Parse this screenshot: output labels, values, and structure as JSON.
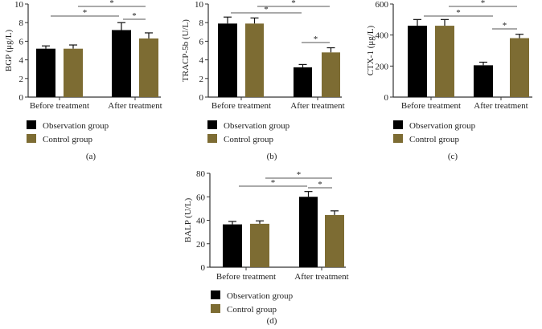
{
  "colors": {
    "observation": "#000000",
    "control": "#7d6c33",
    "axis": "#333333",
    "sig_line": "#555555"
  },
  "legend": [
    "Observation group",
    "Control group"
  ],
  "chart_data": [
    {
      "type": "bar",
      "panel_label": "(a)",
      "ylabel": "BGP (μg/L)",
      "ylim": [
        0,
        10
      ],
      "yticks": [
        "0",
        "2",
        "4",
        "6",
        "8",
        "10"
      ],
      "categories": [
        "Before treatment",
        "After treatment"
      ],
      "series": [
        {
          "name": "Observation group",
          "values": [
            5.2,
            7.2
          ],
          "errors": [
            0.3,
            0.8
          ]
        },
        {
          "name": "Control group",
          "values": [
            5.2,
            6.3
          ],
          "errors": [
            0.4,
            0.6
          ]
        }
      ],
      "significance": [
        "*",
        "*",
        "*"
      ]
    },
    {
      "type": "bar",
      "panel_label": "(b)",
      "ylabel": "TRACP-5b (U/L)",
      "ylim": [
        0,
        10
      ],
      "yticks": [
        "0",
        "2",
        "4",
        "6",
        "8",
        "10"
      ],
      "categories": [
        "Before treatment",
        "After treatment"
      ],
      "series": [
        {
          "name": "Observation group",
          "values": [
            7.9,
            3.2
          ],
          "errors": [
            0.7,
            0.3
          ]
        },
        {
          "name": "Control group",
          "values": [
            7.9,
            4.8
          ],
          "errors": [
            0.6,
            0.5
          ]
        }
      ],
      "significance": [
        "*",
        "*",
        "*"
      ]
    },
    {
      "type": "bar",
      "panel_label": "(c)",
      "ylabel": "CTX-1 (μg/L)",
      "ylim": [
        0,
        600
      ],
      "yticks": [
        "0",
        "200",
        "400",
        "600"
      ],
      "categories": [
        "Before treatment",
        "After treatment"
      ],
      "series": [
        {
          "name": "Observation group",
          "values": [
            460,
            205
          ],
          "errors": [
            40,
            20
          ]
        },
        {
          "name": "Control group",
          "values": [
            460,
            380
          ],
          "errors": [
            40,
            25
          ]
        }
      ],
      "significance": [
        "*",
        "*",
        "*"
      ]
    },
    {
      "type": "bar",
      "panel_label": "(d)",
      "ylabel": "BALP (U/L)",
      "ylim": [
        0,
        80
      ],
      "yticks": [
        "0",
        "20",
        "40",
        "60",
        "80"
      ],
      "categories": [
        "Before treatment",
        "After treatment"
      ],
      "series": [
        {
          "name": "Observation group",
          "values": [
            36.5,
            60
          ],
          "errors": [
            2.5,
            4.5
          ]
        },
        {
          "name": "Control group",
          "values": [
            37,
            44.5
          ],
          "errors": [
            2.5,
            3.5
          ]
        }
      ],
      "significance": [
        "*",
        "*",
        "*"
      ]
    }
  ]
}
